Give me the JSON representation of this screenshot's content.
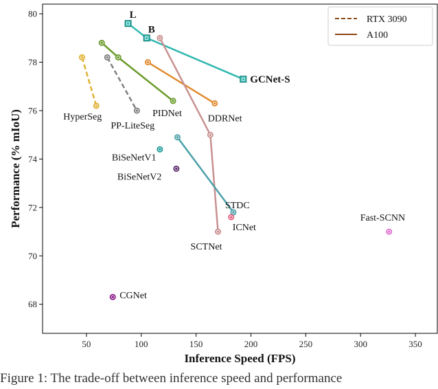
{
  "caption": "Figure 1: The trade-off between inference speed and performance",
  "chart_data": {
    "type": "scatter",
    "xlabel": "Inference Speed (FPS)",
    "ylabel": "Performance (% mIoU)",
    "xlim": [
      10,
      370
    ],
    "ylim": [
      66.8,
      80.4
    ],
    "xticks": [
      50,
      100,
      150,
      200,
      250,
      300,
      350
    ],
    "yticks": [
      68,
      70,
      72,
      74,
      76,
      78,
      80
    ],
    "grid": false,
    "legend": {
      "position": "top-right",
      "entries": [
        {
          "label": "RTX 3090",
          "style": "dashed",
          "color": "#8b4513"
        },
        {
          "label": "A100",
          "style": "solid",
          "color": "#8b4513"
        }
      ]
    },
    "series": [
      {
        "name": "HyperSeg",
        "device": "RTX 3090",
        "color": "#e0b030",
        "marker": "circle",
        "points": [
          [
            46,
            78.2
          ],
          [
            59,
            76.2
          ]
        ]
      },
      {
        "name": "PP-LiteSeg",
        "device": "RTX 3090",
        "color": "#7f7f7f",
        "marker": "circle",
        "points": [
          [
            69,
            78.2
          ],
          [
            96,
            76.0
          ]
        ]
      },
      {
        "name": "PIDNet",
        "device": "A100",
        "color": "#6a9a2a",
        "marker": "circle",
        "points": [
          [
            64,
            78.8
          ],
          [
            79,
            78.2
          ],
          [
            129,
            76.4
          ]
        ]
      },
      {
        "name": "DDRNet",
        "device": "A100",
        "color": "#e08b30",
        "marker": "circle",
        "points": [
          [
            106,
            78.0
          ],
          [
            167,
            76.3
          ]
        ]
      },
      {
        "name": "GCNet-S",
        "device": "A100",
        "color": "#30b8b0",
        "marker": "square",
        "points": [
          [
            88,
            79.6
          ],
          [
            105,
            79.0
          ],
          [
            193,
            77.3
          ]
        ],
        "point_labels": [
          "L",
          "B",
          ""
        ]
      },
      {
        "name": "SCTNet",
        "device": "A100",
        "color": "#c89090",
        "marker": "circle",
        "points": [
          [
            117,
            79.0
          ],
          [
            163,
            75.0
          ],
          [
            170,
            71.0
          ]
        ]
      },
      {
        "name": "STDC",
        "device": "A100",
        "color": "#4aa0a8",
        "marker": "circle",
        "points": [
          [
            133,
            74.9
          ],
          [
            184,
            71.8
          ]
        ]
      },
      {
        "name": "BiSeNetV1",
        "device": "A100",
        "color": "#1a9a9a",
        "marker": "circle",
        "points": [
          [
            117,
            74.4
          ]
        ]
      },
      {
        "name": "BiSeNetV2",
        "device": "A100",
        "color": "#5a2a6a",
        "marker": "circle",
        "points": [
          [
            132,
            73.6
          ]
        ]
      },
      {
        "name": "ICNet",
        "device": "A100",
        "color": "#e06080",
        "marker": "circle",
        "points": [
          [
            182,
            71.6
          ]
        ]
      },
      {
        "name": "Fast-SCNN",
        "device": "A100",
        "color": "#e070d0",
        "marker": "circle",
        "points": [
          [
            326,
            71.0
          ]
        ]
      },
      {
        "name": "CGNet",
        "device": "A100",
        "color": "#8a1a8a",
        "marker": "circle",
        "points": [
          [
            74,
            68.3
          ]
        ]
      }
    ]
  }
}
